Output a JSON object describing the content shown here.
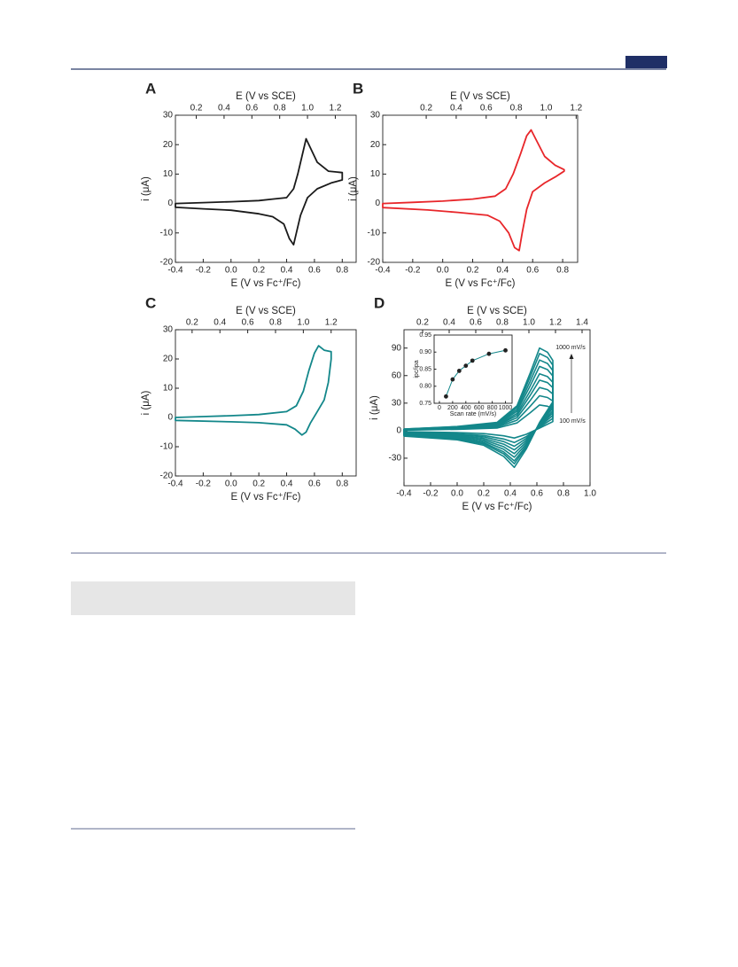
{
  "chart_data": [
    {
      "type": "line",
      "label": "A",
      "x2label": "E (V vs SCE)",
      "xlabel": "E (V vs Fc⁺/Fc)",
      "ylabel": "i (μA)",
      "xlim": [
        -0.4,
        0.9
      ],
      "xticks": [
        -0.4,
        -0.2,
        {
          "value": 0,
          "label": "0.0"
        },
        0.2,
        0.4,
        0.6,
        0.8
      ],
      "x2lim": [
        0.05,
        1.35
      ],
      "x2ticks": [
        0.2,
        0.4,
        0.6,
        0.8,
        {
          "value": 1,
          "label": "1.0"
        },
        1.2
      ],
      "ylim": [
        -20,
        30
      ],
      "yticks": [
        -20,
        -10,
        0,
        10,
        20,
        30
      ],
      "series": [
        {
          "color": "#1a1a1a",
          "x": [
            -0.4,
            -0.2,
            0,
            0.2,
            0.3,
            0.4,
            0.45,
            0.48,
            0.51,
            0.54,
            0.57,
            0.62,
            0.7,
            0.8,
            0.8,
            0.72,
            0.62,
            0.55,
            0.5,
            0.47,
            0.45,
            0.42,
            0.38,
            0.3,
            0.2,
            0,
            -0.2,
            -0.4
          ],
          "values": [
            0,
            0.3,
            0.6,
            1,
            1.5,
            2,
            5,
            10,
            16,
            22,
            19,
            14,
            11,
            10.5,
            8,
            7,
            5,
            2,
            -4,
            -10,
            -14,
            -12,
            -7,
            -4.5,
            -3.5,
            -2.3,
            -1.8,
            -1.3
          ]
        }
      ]
    },
    {
      "type": "line",
      "label": "B",
      "x2label": "E (V vs SCE)",
      "xlabel": "E (V vs Fc⁺/Fc)",
      "ylabel": "i (μA)",
      "xlim": [
        -0.4,
        0.9
      ],
      "xticks": [
        -0.4,
        -0.2,
        {
          "value": 0,
          "label": "0.0"
        },
        0.2,
        0.4,
        0.6,
        0.8
      ],
      "x2lim": [
        -0.09,
        1.21
      ],
      "x2ticks": [
        0.2,
        0.4,
        0.6,
        0.8,
        {
          "value": 1,
          "label": "1.0"
        },
        1.2
      ],
      "ylim": [
        -20,
        30
      ],
      "yticks": [
        -20,
        -10,
        0,
        10,
        20,
        30
      ],
      "series": [
        {
          "color": "#e8262a",
          "x": [
            -0.4,
            -0.2,
            0,
            0.2,
            0.35,
            0.42,
            0.47,
            0.52,
            0.56,
            0.59,
            0.62,
            0.68,
            0.75,
            0.81,
            0.81,
            0.75,
            0.68,
            0.6,
            0.56,
            0.53,
            0.51,
            0.48,
            0.44,
            0.38,
            0.3,
            0.1,
            -0.1,
            -0.4
          ],
          "values": [
            0,
            0.4,
            0.8,
            1.5,
            2.5,
            5,
            10,
            17,
            23,
            25,
            22,
            16,
            13,
            11.5,
            11,
            9,
            7,
            4,
            -2,
            -10,
            -16,
            -15,
            -10,
            -6,
            -4,
            -3,
            -2.2,
            -1.4
          ]
        }
      ]
    },
    {
      "type": "line",
      "label": "C",
      "x2label": "E (V vs SCE)",
      "xlabel": "E (V vs Fc⁺/Fc)",
      "ylabel": "i (μA)",
      "xlim": [
        -0.4,
        0.9
      ],
      "xticks": [
        -0.4,
        -0.2,
        {
          "value": 0,
          "label": "0.0"
        },
        0.2,
        0.4,
        0.6,
        0.8
      ],
      "x2lim": [
        0.08,
        1.38
      ],
      "x2ticks": [
        0.2,
        0.4,
        0.6,
        0.8,
        {
          "value": 1,
          "label": "1.0"
        },
        1.2
      ],
      "ylim": [
        -20,
        30
      ],
      "yticks": [
        -20,
        -10,
        0,
        10,
        20,
        30
      ],
      "series": [
        {
          "color": "#13878a",
          "x": [
            -0.4,
            -0.2,
            0,
            0.2,
            0.4,
            0.47,
            0.52,
            0.56,
            0.6,
            0.63,
            0.67,
            0.72,
            0.72,
            0.7,
            0.67,
            0.62,
            0.57,
            0.54,
            0.51,
            0.46,
            0.4,
            0.2,
            0,
            -0.4
          ],
          "values": [
            0,
            0.3,
            0.6,
            1,
            2,
            4,
            9,
            16,
            22,
            24.5,
            23,
            22.5,
            20,
            12,
            6,
            2,
            -2,
            -5,
            -6,
            -4,
            -2.5,
            -1.8,
            -1.5,
            -1
          ]
        }
      ]
    },
    {
      "type": "line",
      "label": "D",
      "x2label": "E (V vs SCE)",
      "xlabel": "E (V vs Fc⁺/Fc)",
      "ylabel": "i (μA)",
      "xlim": [
        -0.4,
        1.0
      ],
      "xticks": [
        -0.4,
        -0.2,
        {
          "value": 0,
          "label": "0.0"
        },
        0.2,
        0.4,
        0.6,
        0.8,
        {
          "value": 1,
          "label": "1.0"
        }
      ],
      "x2lim": [
        0.06,
        1.46
      ],
      "x2ticks": [
        0.2,
        0.4,
        0.6,
        0.8,
        {
          "value": 1,
          "label": "1.0"
        },
        1.2,
        1.4
      ],
      "ylim": [
        -60,
        110
      ],
      "yticks": [
        -30,
        0,
        30,
        60,
        90
      ],
      "series": [
        {
          "color": "#13878a",
          "x": [
            -0.4,
            0,
            0.3,
            0.45,
            0.55,
            0.62,
            0.68,
            0.72,
            0.72,
            0.62,
            0.52,
            0.43,
            0.35,
            0.2,
            0,
            -0.4
          ],
          "values": [
            0.6,
            1.4,
            2.8,
            8.4,
            19.6,
            28,
            26.6,
            23.8,
            9.8,
            2.8,
            -4,
            -8,
            -5.6,
            -3.2,
            -2,
            -1.2
          ]
        },
        {
          "color": "#13878a",
          "x": [
            -0.4,
            0,
            0.3,
            0.45,
            0.55,
            0.62,
            0.68,
            0.72,
            0.72,
            0.62,
            0.52,
            0.43,
            0.35,
            0.2,
            0,
            -0.4
          ],
          "values": [
            0.8,
            1.9,
            3.8,
            11.4,
            26.6,
            38,
            36.1,
            32.3,
            13.3,
            3.8,
            -6.5,
            -13,
            -9.1,
            -5.2,
            -3.3,
            -2
          ]
        },
        {
          "color": "#13878a",
          "x": [
            -0.4,
            0,
            0.3,
            0.45,
            0.55,
            0.62,
            0.68,
            0.72,
            0.72,
            0.62,
            0.52,
            0.43,
            0.35,
            0.2,
            0,
            -0.4
          ],
          "values": [
            0.9,
            2.4,
            4.7,
            14.1,
            32.9,
            47,
            44.7,
            40,
            16.5,
            4.7,
            -8.5,
            -17,
            -11.9,
            -6.8,
            -4.3,
            -2.6
          ]
        },
        {
          "color": "#13878a",
          "x": [
            -0.4,
            0,
            0.3,
            0.45,
            0.55,
            0.62,
            0.68,
            0.72,
            0.72,
            0.62,
            0.52,
            0.43,
            0.35,
            0.2,
            0,
            -0.4
          ],
          "values": [
            1.1,
            2.8,
            5.5,
            16.5,
            38.5,
            55,
            52.3,
            46.8,
            19.3,
            5.5,
            -10.5,
            -21,
            -14.7,
            -8.4,
            -5.3,
            -3.2
          ]
        },
        {
          "color": "#13878a",
          "x": [
            -0.4,
            0,
            0.3,
            0.45,
            0.55,
            0.62,
            0.68,
            0.72,
            0.72,
            0.62,
            0.52,
            0.43,
            0.35,
            0.2,
            0,
            -0.4
          ],
          "values": [
            1.2,
            3.1,
            6.2,
            18.6,
            43.4,
            62,
            58.9,
            52.7,
            21.7,
            6.2,
            -12.5,
            -25,
            -17.5,
            -10,
            -6.3,
            -3.8
          ]
        },
        {
          "color": "#13878a",
          "x": [
            -0.4,
            0,
            0.3,
            0.45,
            0.55,
            0.62,
            0.68,
            0.72,
            0.72,
            0.62,
            0.52,
            0.43,
            0.35,
            0.2,
            0,
            -0.4
          ],
          "values": [
            1.4,
            3.5,
            7,
            21,
            49,
            70,
            66.5,
            59.5,
            24.5,
            7,
            -14.5,
            -29,
            -20.3,
            -11.6,
            -7.3,
            -4.4
          ]
        },
        {
          "color": "#13878a",
          "x": [
            -0.4,
            0,
            0.3,
            0.45,
            0.55,
            0.62,
            0.68,
            0.72,
            0.72,
            0.62,
            0.52,
            0.43,
            0.35,
            0.2,
            0,
            -0.4
          ],
          "values": [
            1.5,
            3.9,
            7.7,
            23.1,
            53.9,
            77,
            73.2,
            65.5,
            27,
            7.7,
            -16.5,
            -33,
            -23.1,
            -13.2,
            -8.3,
            -5
          ]
        },
        {
          "color": "#13878a",
          "x": [
            -0.4,
            0,
            0.3,
            0.45,
            0.55,
            0.62,
            0.68,
            0.72,
            0.72,
            0.62,
            0.52,
            0.43,
            0.35,
            0.2,
            0,
            -0.4
          ],
          "values": [
            1.7,
            4.2,
            8.4,
            25.2,
            58.8,
            84,
            79.8,
            71.4,
            29.4,
            8.4,
            -18,
            -36,
            -25.2,
            -14.4,
            -9,
            -5.4
          ]
        },
        {
          "color": "#13878a",
          "x": [
            -0.4,
            0,
            0.3,
            0.45,
            0.55,
            0.62,
            0.68,
            0.72,
            0.72,
            0.62,
            0.52,
            0.43,
            0.35,
            0.2,
            0,
            -0.4
          ],
          "values": [
            1.8,
            4.5,
            9,
            27,
            63,
            90,
            85.5,
            76.5,
            31.5,
            9,
            -20,
            -40,
            -28,
            -16,
            -10,
            -6
          ]
        }
      ],
      "annotations": [
        "1000 mV/s",
        "100 mV/s"
      ],
      "inset": {
        "type": "line",
        "xlabel": "Scan rate (mV/s)",
        "ylabel": "ipc/ipa",
        "color": "#13878a",
        "xlim": [
          -80,
          1100
        ],
        "xticks": [
          0,
          200,
          400,
          600,
          800,
          1000
        ],
        "ylim": [
          0.75,
          0.95
        ],
        "yticks": [
          0.75,
          {
            "value": 0.8,
            "label": "0.80"
          },
          0.85,
          {
            "value": 0.9,
            "label": "0.90"
          },
          0.95
        ],
        "x": [
          100,
          200,
          300,
          400,
          500,
          750,
          1000
        ],
        "values": [
          0.77,
          0.82,
          0.845,
          0.86,
          0.875,
          0.895,
          0.905
        ]
      }
    }
  ]
}
